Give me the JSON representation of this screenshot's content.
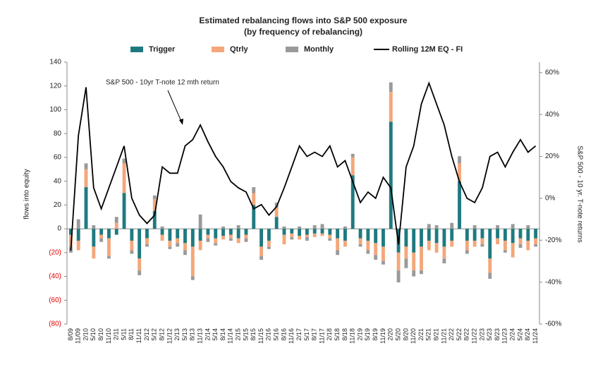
{
  "chart_data": {
    "type": "bar",
    "title": "Estimated rebalancing flows into S&P 500 exposure",
    "subtitle": "(by frequency of rebalancing)",
    "y_label": "flows into equity",
    "y2_label": "S&P 500 - 10 yr. T-note returns",
    "annotation": "S&P 500 - 10yr T-note 12 mth return",
    "categories": [
      "8/09",
      "11/09",
      "2/10",
      "5/10",
      "8/10",
      "11/10",
      "2/11",
      "5/11",
      "8/11",
      "11/11",
      "2/12",
      "5/12",
      "8/12",
      "11/12",
      "2/13",
      "5/13",
      "8/13",
      "11/13",
      "2/14",
      "5/14",
      "8/14",
      "11/14",
      "2/15",
      "5/15",
      "8/15",
      "11/15",
      "2/16",
      "5/16",
      "8/16",
      "11/16",
      "2/17",
      "5/17",
      "8/17",
      "11/17",
      "2/18",
      "5/18",
      "8/18",
      "11/18",
      "2/19",
      "5/19",
      "8/19",
      "11/19",
      "2/20",
      "5/20",
      "8/20",
      "11/20",
      "2/21",
      "5/21",
      "8/21",
      "11/21",
      "2/22",
      "5/22",
      "8/22",
      "11/22",
      "2/23",
      "5/23",
      "8/23",
      "11/23",
      "2/24",
      "5/24",
      "8/24",
      "11/24"
    ],
    "series": [
      {
        "name": "Trigger",
        "type": "bar",
        "color": "#1f7a80",
        "values": [
          -5,
          -10,
          35,
          -15,
          -5,
          -8,
          -5,
          30,
          -10,
          -25,
          -8,
          15,
          -5,
          -10,
          -8,
          -12,
          -15,
          -10,
          -5,
          -8,
          -6,
          -5,
          -8,
          -5,
          20,
          -15,
          -10,
          10,
          -5,
          -4,
          -6,
          -5,
          -4,
          -4,
          -5,
          -8,
          -10,
          45,
          -8,
          -10,
          -12,
          -15,
          90,
          -20,
          -15,
          -20,
          -15,
          -10,
          -12,
          -15,
          -10,
          40,
          -10,
          -10,
          -8,
          -25,
          -8,
          -10,
          -12,
          -8,
          -10,
          -8
        ]
      },
      {
        "name": "Qtrly",
        "type": "bar",
        "color": "#f4a77a",
        "values": [
          -10,
          -8,
          15,
          -10,
          -3,
          -15,
          5,
          25,
          -8,
          -10,
          -5,
          10,
          -5,
          -5,
          -4,
          -6,
          -25,
          -8,
          -3,
          -4,
          -3,
          -3,
          -4,
          -3,
          10,
          -8,
          -5,
          8,
          -8,
          -3,
          -3,
          -2,
          -3,
          -2,
          -3,
          -10,
          -5,
          15,
          -5,
          -8,
          -10,
          -12,
          25,
          -15,
          -10,
          -15,
          -20,
          -8,
          -8,
          -10,
          -5,
          15,
          -8,
          -5,
          -5,
          -12,
          -5,
          -8,
          -12,
          -5,
          -8,
          -5
        ]
      },
      {
        "name": "Monthly",
        "type": "bar",
        "color": "#9a9a9a",
        "values": [
          -5,
          8,
          5,
          3,
          -3,
          -2,
          5,
          4,
          -3,
          -4,
          -2,
          3,
          2,
          -2,
          -3,
          -4,
          -3,
          12,
          -3,
          -2,
          2,
          -2,
          3,
          -3,
          5,
          -3,
          -2,
          4,
          2,
          -2,
          2,
          -3,
          3,
          4,
          -2,
          -4,
          2,
          3,
          -2,
          -3,
          -4,
          -3,
          8,
          -10,
          -8,
          -5,
          -3,
          4,
          3,
          -4,
          5,
          6,
          -3,
          3,
          -2,
          -5,
          3,
          -2,
          4,
          -3,
          3,
          -2
        ]
      },
      {
        "name": "Rolling 12M EQ - FI",
        "type": "line",
        "axis": "y2",
        "color": "#000000",
        "values": [
          -25,
          30,
          53,
          5,
          -5,
          5,
          15,
          25,
          0,
          -8,
          -12,
          -8,
          15,
          12,
          12,
          25,
          28,
          35,
          27,
          20,
          15,
          8,
          5,
          3,
          -5,
          -3,
          -8,
          -4,
          5,
          15,
          25,
          20,
          22,
          20,
          25,
          15,
          18,
          8,
          -2,
          3,
          0,
          10,
          5,
          -22,
          15,
          25,
          45,
          55,
          45,
          35,
          20,
          8,
          0,
          -2,
          5,
          20,
          22,
          15,
          22,
          28,
          22,
          25
        ]
      }
    ],
    "ylim": [
      -80,
      140
    ],
    "yticks": [
      {
        "value": -80,
        "label": "(80)"
      },
      {
        "value": -60,
        "label": "(60)"
      },
      {
        "value": -40,
        "label": "(40)"
      },
      {
        "value": -20,
        "label": "(20)"
      },
      0,
      20,
      40,
      60,
      80,
      100,
      120,
      140
    ],
    "negative_tick_label_color": "#e00000",
    "y2lim": [
      -60,
      65
    ],
    "y2ticks": [
      {
        "value": -60,
        "label": "-60%"
      },
      {
        "value": -40,
        "label": "-40%"
      },
      {
        "value": -20,
        "label": "-20%"
      },
      {
        "value": 0,
        "label": "0%"
      },
      {
        "value": 20,
        "label": "20%"
      },
      {
        "value": 40,
        "label": "40%"
      },
      {
        "value": 60,
        "label": "60%"
      }
    ]
  }
}
